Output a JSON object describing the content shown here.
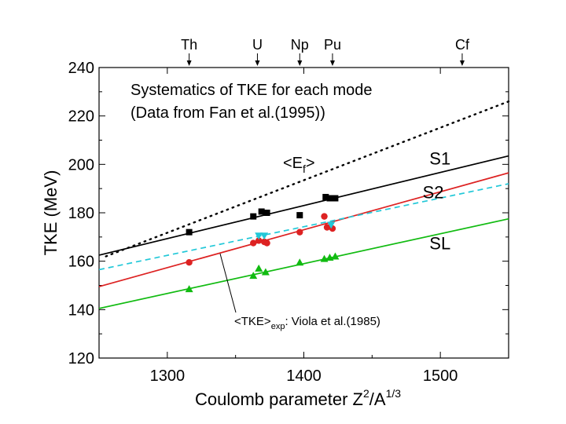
{
  "chart_data": {
    "type": "scatter",
    "title_lines": [
      "Systematics of TKE for each mode",
      "(Data from Fan et al.(1995))"
    ],
    "xlabel": {
      "main": "Coulomb parameter Z",
      "sup1": "2",
      "mid": "/A",
      "sup2": "1/3"
    },
    "ylabel": "TKE (MeV)",
    "xlim": [
      1250,
      1550
    ],
    "ylim": [
      120,
      240
    ],
    "xticks": [
      1300,
      1400,
      1500
    ],
    "xticks_minor": [
      1250,
      1350,
      1450,
      1550
    ],
    "yticks": [
      120,
      140,
      160,
      180,
      200,
      220,
      240
    ],
    "yticks_minor": [
      130,
      150,
      170,
      190,
      210,
      230
    ],
    "elements": [
      {
        "label": "Th",
        "x": 1316
      },
      {
        "label": "U",
        "x": 1366
      },
      {
        "label": "Np",
        "x": 1397
      },
      {
        "label": "Pu",
        "x": 1421
      },
      {
        "label": "Cf",
        "x": 1516
      }
    ],
    "lines": [
      {
        "name": "S1",
        "color": "#000000",
        "style": "solid",
        "x": [
          1250,
          1550
        ],
        "y": [
          162.5,
          203.5
        ],
        "label_pos": [
          1492,
          200
        ]
      },
      {
        "name": "S2",
        "color": "#dd2222",
        "style": "solid",
        "x": [
          1250,
          1550
        ],
        "y": [
          149.5,
          196.5
        ],
        "label_pos": [
          1487,
          186
        ]
      },
      {
        "name": "SL",
        "color": "#11bb11",
        "style": "solid",
        "x": [
          1250,
          1550
        ],
        "y": [
          140.5,
          177.5
        ],
        "label_pos": [
          1492,
          165
        ]
      },
      {
        "name": "<TKE>exp",
        "color": "#22c8d8",
        "style": "dashed",
        "x": [
          1250,
          1550
        ],
        "y": [
          156.5,
          192
        ]
      },
      {
        "name": "<Ef>",
        "color": "#000000",
        "style": "dotted",
        "x": [
          1255,
          1550
        ],
        "y": [
          162,
          226
        ]
      }
    ],
    "series": [
      {
        "name": "S1",
        "marker": "square",
        "color": "#000000",
        "points": [
          [
            1316,
            172
          ],
          [
            1363,
            178.5
          ],
          [
            1369,
            180.5
          ],
          [
            1373,
            180
          ],
          [
            1397,
            179
          ],
          [
            1416,
            186.5
          ],
          [
            1419,
            186
          ],
          [
            1423,
            186
          ]
        ]
      },
      {
        "name": "S2",
        "marker": "circle",
        "color": "#dd2222",
        "points": [
          [
            1316,
            159.5
          ],
          [
            1363,
            167.5
          ],
          [
            1367,
            168.5
          ],
          [
            1371,
            168
          ],
          [
            1373,
            167.5
          ],
          [
            1397,
            172
          ],
          [
            1415,
            178.5
          ],
          [
            1417,
            174
          ],
          [
            1421,
            173.5
          ]
        ]
      },
      {
        "name": "SL",
        "marker": "triangle-up",
        "color": "#11bb11",
        "points": [
          [
            1316,
            148.5
          ],
          [
            1363,
            154
          ],
          [
            1367,
            157
          ],
          [
            1372,
            155.5
          ],
          [
            1397,
            159.5
          ],
          [
            1415,
            161
          ],
          [
            1419,
            161.5
          ],
          [
            1423,
            162
          ]
        ]
      },
      {
        "name": "<TKE>exp",
        "marker": "triangle-down",
        "color": "#22c8d8",
        "points": [
          [
            1367,
            170.5
          ],
          [
            1371,
            170.5
          ],
          [
            1420,
            175
          ]
        ]
      }
    ],
    "annotations": {
      "ef_main": "<E",
      "ef_sub": "f",
      "ef_close": ">",
      "viola_pre": "<TKE>",
      "viola_sub": "exp",
      "viola_post": ": Viola et al.(1985)"
    }
  }
}
